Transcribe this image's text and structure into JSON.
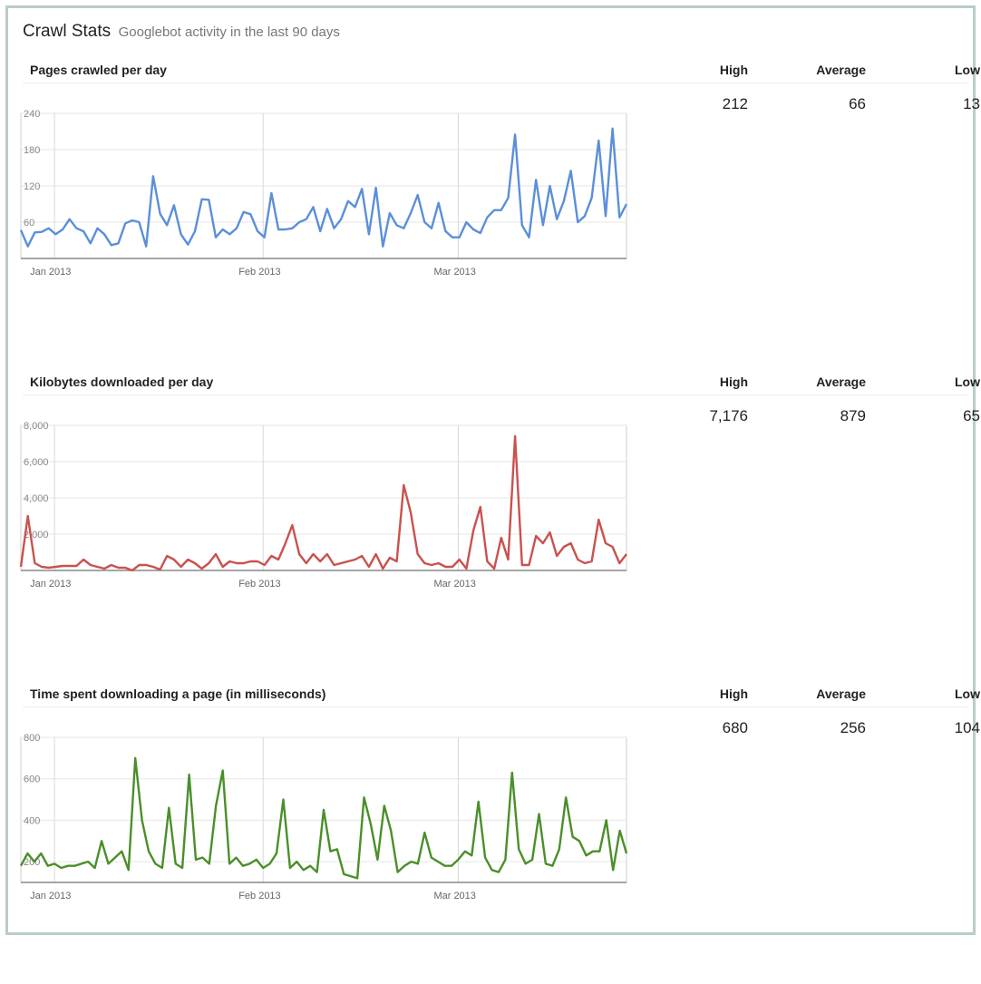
{
  "header": {
    "title": "Crawl Stats",
    "subtitle": "Googlebot activity in the last 90 days"
  },
  "stats_labels": {
    "high": "High",
    "average": "Average",
    "low": "Low"
  },
  "sections": [
    {
      "title": "Pages crawled per day",
      "high": "212",
      "average": "66",
      "low": "13",
      "color": "#5b8fd9"
    },
    {
      "title": "Kilobytes downloaded per day",
      "high": "7,176",
      "average": "879",
      "low": "65",
      "color": "#c9524e"
    },
    {
      "title": "Time spent downloading a page (in milliseconds)",
      "high": "680",
      "average": "256",
      "low": "104",
      "color": "#4a8f2a"
    }
  ],
  "chart_data": [
    {
      "type": "line",
      "x_labels": [
        "Jan 2013",
        "Feb 2013",
        "Mar 2013"
      ],
      "x_label_days": [
        5,
        36,
        65
      ],
      "x_range": [
        0,
        90
      ],
      "ylim": [
        0,
        240
      ],
      "y_ticks": [
        60,
        120,
        180,
        240
      ],
      "y_tick_labels": [
        "60",
        "120",
        "180",
        "240"
      ],
      "grid": true,
      "values": [
        47,
        20,
        43,
        44,
        50,
        40,
        48,
        65,
        50,
        45,
        25,
        50,
        40,
        22,
        25,
        58,
        63,
        60,
        20,
        136,
        74,
        55,
        88,
        40,
        23,
        45,
        98,
        97,
        35,
        48,
        40,
        50,
        77,
        73,
        45,
        35,
        108,
        48,
        48,
        50,
        60,
        65,
        85,
        45,
        82,
        50,
        65,
        95,
        85,
        115,
        40,
        117,
        20,
        75,
        55,
        50,
        75,
        105,
        60,
        50,
        92,
        45,
        35,
        35,
        60,
        48,
        42,
        68,
        80,
        80,
        100,
        205,
        55,
        35,
        130,
        55,
        120,
        65,
        95,
        145,
        60,
        70,
        100,
        195,
        70,
        215,
        68,
        90
      ],
      "high": 212,
      "average": 66,
      "low": 13
    },
    {
      "type": "line",
      "x_labels": [
        "Jan 2013",
        "Feb 2013",
        "Mar 2013"
      ],
      "x_label_days": [
        5,
        36,
        65
      ],
      "x_range": [
        0,
        90
      ],
      "ylim": [
        0,
        8000
      ],
      "y_ticks": [
        2000,
        4000,
        6000,
        8000
      ],
      "y_tick_labels": [
        "2,000",
        "4,000",
        "6,000",
        "8,000"
      ],
      "grid": true,
      "values": [
        200,
        3000,
        400,
        200,
        150,
        200,
        250,
        250,
        250,
        600,
        300,
        200,
        100,
        300,
        150,
        150,
        0,
        300,
        300,
        200,
        50,
        800,
        600,
        200,
        600,
        400,
        100,
        400,
        900,
        200,
        500,
        400,
        400,
        500,
        500,
        300,
        800,
        600,
        1500,
        2500,
        900,
        400,
        900,
        500,
        900,
        300,
        400,
        500,
        600,
        800,
        200,
        900,
        100,
        700,
        500,
        4700,
        3200,
        900,
        400,
        300,
        400,
        200,
        200,
        600,
        100,
        2200,
        3500,
        500,
        100,
        1800,
        600,
        7400,
        300,
        300,
        1900,
        1500,
        2100,
        800,
        1300,
        1500,
        600,
        400,
        500,
        2800,
        1500,
        1300,
        400,
        900
      ],
      "high": 7176,
      "average": 879,
      "low": 65
    },
    {
      "type": "line",
      "x_labels": [
        "Jan 2013",
        "Feb 2013",
        "Mar 2013"
      ],
      "x_label_days": [
        5,
        36,
        65
      ],
      "x_range": [
        0,
        90
      ],
      "ylim": [
        100,
        800
      ],
      "y_ticks": [
        200,
        400,
        600,
        800
      ],
      "y_tick_labels": [
        "200",
        "400",
        "600",
        "800"
      ],
      "grid": true,
      "values": [
        180,
        240,
        200,
        240,
        180,
        190,
        170,
        180,
        180,
        190,
        200,
        170,
        300,
        190,
        220,
        250,
        160,
        700,
        400,
        250,
        190,
        170,
        460,
        190,
        170,
        620,
        210,
        220,
        190,
        470,
        640,
        190,
        220,
        180,
        190,
        210,
        170,
        190,
        240,
        500,
        170,
        200,
        160,
        180,
        150,
        450,
        250,
        260,
        140,
        130,
        120,
        510,
        380,
        210,
        470,
        350,
        150,
        180,
        200,
        190,
        340,
        220,
        200,
        180,
        180,
        210,
        250,
        230,
        490,
        220,
        160,
        150,
        210,
        630,
        260,
        190,
        210,
        430,
        190,
        180,
        260,
        510,
        320,
        300,
        230,
        250,
        250,
        400,
        160,
        350,
        240
      ],
      "high": 680,
      "average": 256,
      "low": 104
    }
  ]
}
